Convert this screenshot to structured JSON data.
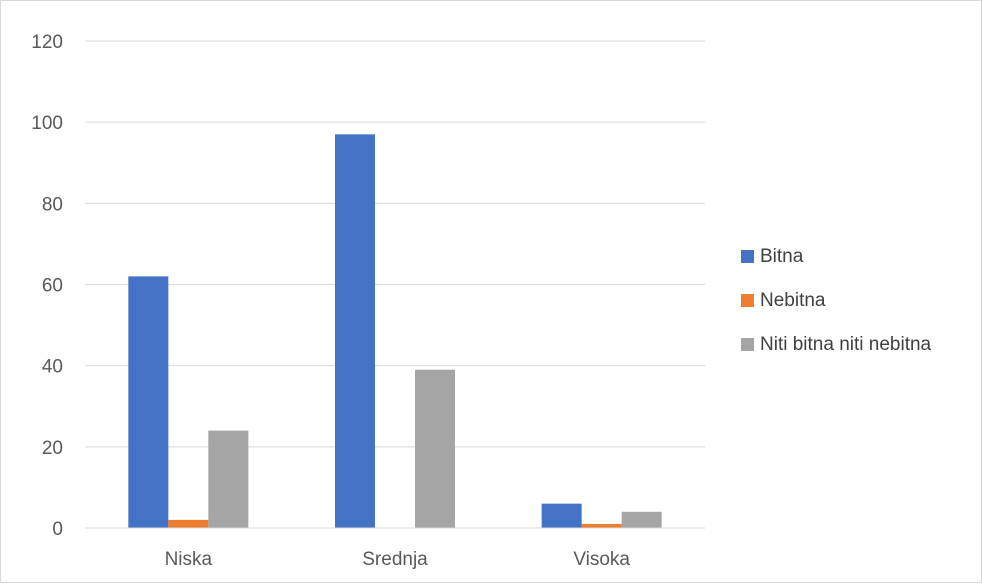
{
  "chart_data": {
    "type": "bar",
    "categories": [
      "Niska",
      "Srednja",
      "Visoka"
    ],
    "series": [
      {
        "name": "Bitna",
        "values": [
          62,
          97,
          6
        ],
        "color": "#4472C4"
      },
      {
        "name": "Nebitna",
        "values": [
          2,
          0,
          1
        ],
        "color": "#ED7D31"
      },
      {
        "name": "Niti bitna niti nebitna",
        "values": [
          24,
          39,
          4
        ],
        "color": "#A5A5A5"
      }
    ],
    "ylim": [
      0,
      120
    ],
    "yticks": [
      0,
      20,
      40,
      60,
      80,
      100,
      120
    ],
    "grid": true,
    "legend": "right",
    "title": "",
    "xlabel": "",
    "ylabel": ""
  }
}
